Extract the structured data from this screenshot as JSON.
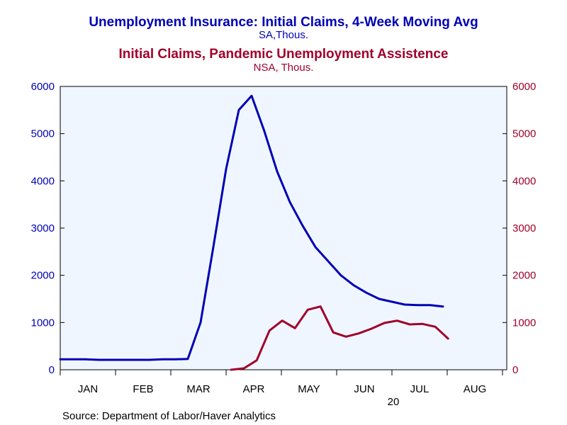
{
  "titles": {
    "line1": "Unemployment Insurance: Initial Claims, 4-Week Moving Avg",
    "line2": "SA,Thous.",
    "line3": "Initial Claims, Pandemic Unemployment Assistence",
    "line4": "NSA, Thous."
  },
  "source": "Source:  Department of Labor/Haver Analytics",
  "year_label": "20",
  "colors": {
    "background": "#f0f6ff",
    "series1": "#0000b4",
    "series2": "#a0002a"
  },
  "chart_data": {
    "type": "line",
    "title": "Unemployment Insurance: Initial Claims, 4-Week Moving Avg",
    "subtitle": "SA,Thous.",
    "months": [
      "JAN",
      "FEB",
      "MAR",
      "APR",
      "MAY",
      "JUN",
      "JUL",
      "AUG"
    ],
    "x_unit": "weeks since start of 2020",
    "xlim": [
      0,
      35
    ],
    "ylim_left": [
      0,
      6000
    ],
    "ylim_right": [
      0,
      6000
    ],
    "yticks": [
      0,
      1000,
      2000,
      3000,
      4000,
      5000,
      6000
    ],
    "grid": false,
    "series": [
      {
        "name": "Unemployment Insurance: Initial Claims, 4-Week Moving Avg",
        "axis": "left",
        "x": [
          0.0,
          1.0,
          2.0,
          3.0,
          4.0,
          5.0,
          6.0,
          7.0,
          8.0,
          9.0,
          10.0,
          11.0,
          12.0,
          13.0,
          14.0,
          15.0,
          16.0,
          17.0,
          18.0,
          19.0,
          20.0,
          21.0,
          22.0,
          23.0,
          24.0,
          25.0,
          26.0,
          27.0,
          28.0,
          29.0,
          30.0
        ],
        "y": [
          220,
          220,
          220,
          210,
          210,
          210,
          210,
          210,
          220,
          220,
          230,
          1000,
          2600,
          4250,
          5500,
          5800,
          5050,
          4200,
          3550,
          3050,
          2600,
          2300,
          2000,
          1790,
          1630,
          1500,
          1440,
          1380,
          1370,
          1370,
          1340
        ]
      },
      {
        "name": "Initial Claims, Pandemic Unemployment Assistence",
        "axis": "right",
        "x": [
          13.4,
          14.4,
          15.4,
          16.4,
          17.4,
          18.4,
          19.4,
          20.4,
          21.4,
          22.4,
          23.4,
          24.4,
          25.4,
          26.4,
          27.4,
          28.4,
          29.4,
          30.4
        ],
        "y": [
          0,
          30,
          200,
          830,
          1040,
          880,
          1270,
          1340,
          790,
          700,
          770,
          870,
          990,
          1040,
          960,
          970,
          910,
          660
        ]
      }
    ]
  }
}
